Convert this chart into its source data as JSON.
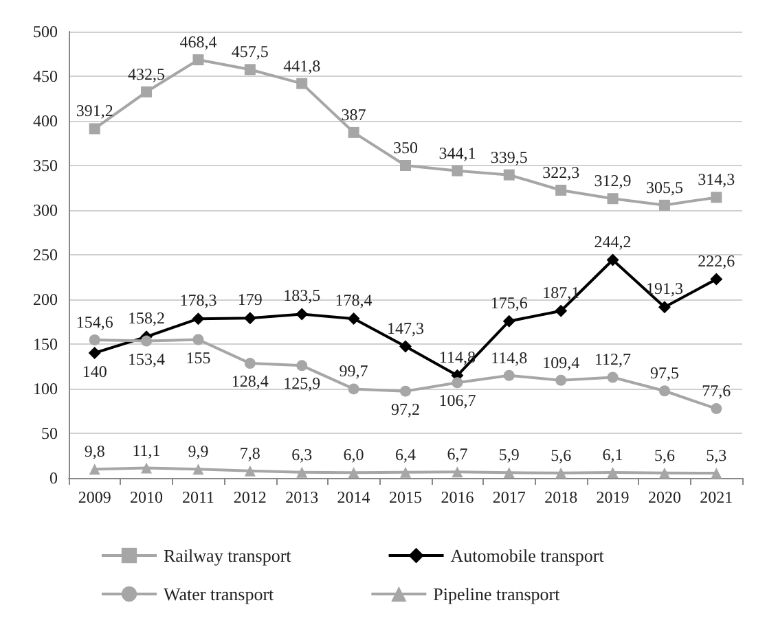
{
  "chart_data": {
    "type": "line",
    "categories": [
      "2009",
      "2010",
      "2011",
      "2012",
      "2013",
      "2014",
      "2015",
      "2016",
      "2017",
      "2018",
      "2019",
      "2020",
      "2021"
    ],
    "ylim": [
      0,
      500
    ],
    "yticks": [
      0,
      50,
      100,
      150,
      200,
      250,
      300,
      350,
      400,
      450,
      500
    ],
    "grid": "y",
    "legend": "bottom",
    "series": [
      {
        "name": "Railway transport",
        "color": "#a6a6a6",
        "marker": "square",
        "values": [
          391.2,
          432.5,
          468.4,
          457.5,
          441.8,
          387,
          350,
          344.1,
          339.5,
          322.3,
          312.9,
          305.5,
          314.3
        ],
        "value_labels": [
          "391,2",
          "432,5",
          "468,4",
          "457,5",
          "441,8",
          "387",
          "350",
          "344,1",
          "339,5",
          "322,3",
          "312,9",
          "305,5",
          "314,3"
        ]
      },
      {
        "name": "Automobile transport",
        "color": "#000000",
        "marker": "diamond",
        "values": [
          140,
          158.2,
          178.3,
          179,
          183.5,
          178.4,
          147.3,
          114.8,
          175.6,
          187.1,
          244.2,
          191.3,
          222.6
        ],
        "value_labels": [
          "140",
          "158,2",
          "178,3",
          "179",
          "183,5",
          "178,4",
          "147,3",
          "114,8",
          "175,6",
          "187,1",
          "244,2",
          "191,3",
          "222,6"
        ]
      },
      {
        "name": "Water transport",
        "color": "#a6a6a6",
        "marker": "circle",
        "values": [
          154.6,
          153.4,
          155,
          128.4,
          125.9,
          99.7,
          97.2,
          106.7,
          114.8,
          109.4,
          112.7,
          97.5,
          77.6
        ],
        "value_labels": [
          "154,6",
          "153,4",
          "155",
          "128,4",
          "125,9",
          "99,7",
          "97,2",
          "106,7",
          "114,8",
          "109,4",
          "112,7",
          "97,5",
          "77,6"
        ]
      },
      {
        "name": "Pipeline transport",
        "color": "#a6a6a6",
        "marker": "triangle",
        "values": [
          9.8,
          11.1,
          9.9,
          7.8,
          6.3,
          6.0,
          6.4,
          6.7,
          5.9,
          5.6,
          6.1,
          5.6,
          5.3
        ],
        "value_labels": [
          "9,8",
          "11,1",
          "9,9",
          "7,8",
          "6,3",
          "6,0",
          "6,4",
          "6,7",
          "5,9",
          "5,6",
          "6,1",
          "5,6",
          "5,3"
        ]
      }
    ]
  }
}
